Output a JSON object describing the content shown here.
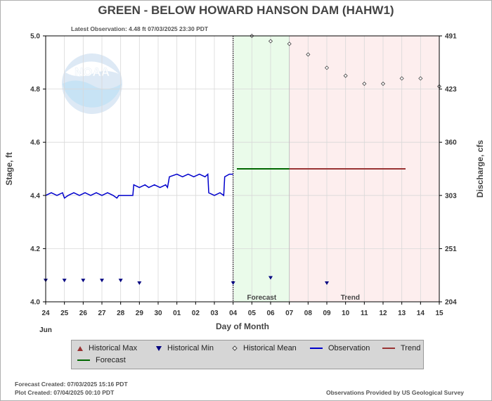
{
  "header": {
    "title": "GREEN - BELOW HOWARD HANSON DAM  (HAHW1)",
    "latest": "Latest Observation: 4.48 ft 07/03/2025 23:30 PDT"
  },
  "footer": {
    "forecast_created": "Forecast Created: 07/03/2025 15:16 PDT",
    "plot_created": "Plot Created: 07/04/2025 00:10 PDT",
    "provider": "Observations Provided by US Geological Survey"
  },
  "logo": {
    "text": "NOAA"
  },
  "colors": {
    "observation": "#0000cc",
    "forecast": "#006600",
    "trend": "#993333",
    "forecast_bg": "#eafbea",
    "trend_bg": "#fdeeee",
    "legend_bg": "#d6d6d6"
  },
  "legend": {
    "items": [
      {
        "label": "Historical Max",
        "symbol": "triangle-up",
        "color": "#993333"
      },
      {
        "label": "Historical Min",
        "symbol": "triangle-down",
        "color": "#000080"
      },
      {
        "label": "Historical Mean",
        "symbol": "diamond",
        "color": "#444444"
      },
      {
        "label": "Observation",
        "symbol": "line",
        "color": "#0000cc"
      },
      {
        "label": "Trend",
        "symbol": "line",
        "color": "#993333"
      },
      {
        "label": "Forecast",
        "symbol": "line",
        "color": "#006600"
      }
    ]
  },
  "chart_data": {
    "type": "line",
    "xlabel": "Day of Month",
    "ylabel": "Stage, ft",
    "ylabel_right": "Discharge, cfs",
    "x_month": "Jun",
    "x_ticks": [
      "24",
      "25",
      "26",
      "27",
      "28",
      "29",
      "30",
      "01",
      "02",
      "03",
      "04",
      "05",
      "06",
      "07",
      "08",
      "09",
      "10",
      "11",
      "12",
      "13",
      "14",
      "15"
    ],
    "ylim": [
      4.0,
      5.0
    ],
    "y_ticks": [
      "4.0",
      "4.2",
      "4.4",
      "4.6",
      "4.8",
      "5.0"
    ],
    "y2_ticks": [
      {
        "stage": 4.0,
        "label": "204"
      },
      {
        "stage": 4.2,
        "label": "251"
      },
      {
        "stage": 4.4,
        "label": "303"
      },
      {
        "stage": 4.6,
        "label": "360"
      },
      {
        "stage": 4.8,
        "label": "423"
      },
      {
        "stage": 5.0,
        "label": "491"
      }
    ],
    "regions": [
      {
        "label": "Forecast",
        "start_day": 10.05,
        "end_day": 13.0
      },
      {
        "label": "Trend",
        "start_day": 13.0,
        "end_day": 21.0
      }
    ],
    "now_day": 10.0,
    "observation": [
      [
        0,
        4.4
      ],
      [
        0.3,
        4.41
      ],
      [
        0.6,
        4.4
      ],
      [
        0.9,
        4.41
      ],
      [
        1.0,
        4.39
      ],
      [
        1.2,
        4.4
      ],
      [
        1.5,
        4.41
      ],
      [
        1.8,
        4.4
      ],
      [
        2.1,
        4.41
      ],
      [
        2.4,
        4.4
      ],
      [
        2.7,
        4.41
      ],
      [
        3.0,
        4.4
      ],
      [
        3.3,
        4.41
      ],
      [
        3.6,
        4.4
      ],
      [
        3.8,
        4.39
      ],
      [
        3.9,
        4.4
      ],
      [
        4.5,
        4.4
      ],
      [
        4.65,
        4.4
      ],
      [
        4.7,
        4.44
      ],
      [
        5.0,
        4.43
      ],
      [
        5.3,
        4.44
      ],
      [
        5.5,
        4.43
      ],
      [
        5.8,
        4.44
      ],
      [
        6.1,
        4.43
      ],
      [
        6.4,
        4.44
      ],
      [
        6.5,
        4.43
      ],
      [
        6.55,
        4.45
      ],
      [
        6.6,
        4.47
      ],
      [
        7.0,
        4.48
      ],
      [
        7.3,
        4.47
      ],
      [
        7.6,
        4.48
      ],
      [
        7.9,
        4.47
      ],
      [
        8.2,
        4.48
      ],
      [
        8.5,
        4.47
      ],
      [
        8.65,
        4.48
      ],
      [
        8.7,
        4.41
      ],
      [
        9.0,
        4.4
      ],
      [
        9.3,
        4.41
      ],
      [
        9.5,
        4.4
      ],
      [
        9.55,
        4.47
      ],
      [
        9.8,
        4.48
      ],
      [
        10.0,
        4.48
      ]
    ],
    "forecast": [
      [
        10.2,
        4.5
      ],
      [
        13.0,
        4.5
      ]
    ],
    "trend": [
      [
        13.0,
        4.5
      ],
      [
        19.2,
        4.5
      ]
    ],
    "historical_mean": [
      [
        11.0,
        5.0
      ],
      [
        12.0,
        4.98
      ],
      [
        13.0,
        4.97
      ],
      [
        14.0,
        4.93
      ],
      [
        15.0,
        4.88
      ],
      [
        16.0,
        4.85
      ],
      [
        17.0,
        4.82
      ],
      [
        18.0,
        4.82
      ],
      [
        19.0,
        4.84
      ],
      [
        20.0,
        4.84
      ],
      [
        21.0,
        4.81
      ]
    ],
    "historical_min": [
      [
        0,
        4.08
      ],
      [
        1,
        4.08
      ],
      [
        2,
        4.08
      ],
      [
        3,
        4.08
      ],
      [
        4,
        4.08
      ],
      [
        5,
        4.07
      ],
      [
        10,
        4.07
      ],
      [
        12,
        4.09
      ],
      [
        15,
        4.07
      ]
    ],
    "historical_max": []
  }
}
